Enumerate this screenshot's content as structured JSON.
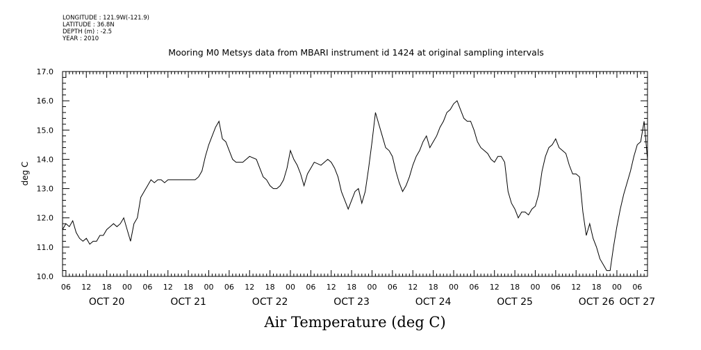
{
  "header": {
    "longitude": "LONGITUDE : 121.9W(-121.9)",
    "latitude": "LATITUDE : 36.8N",
    "depth": "DEPTH (m) : -2.5",
    "year": "YEAR : 2010"
  },
  "chart_data": {
    "type": "line",
    "title": "Mooring M0 Metsys data from MBARI instrument id 1424 at original sampling intervals",
    "xlabel": "Air Temperature (deg C)",
    "ylabel": "deg C",
    "ylim": [
      10.0,
      17.0
    ],
    "y_ticks": [
      "10.0",
      "11.0",
      "12.0",
      "13.0",
      "14.0",
      "15.0",
      "16.0",
      "17.0"
    ],
    "x_range_hours": [
      "Oct 19 2010 23:00",
      "Oct 27 2010 03:00"
    ],
    "hour_tick_labels": [
      "06",
      "12",
      "18",
      "00",
      "06",
      "12",
      "18",
      "00",
      "06",
      "12",
      "18",
      "00",
      "06",
      "12",
      "18",
      "00",
      "06",
      "12",
      "18",
      "00",
      "06",
      "12",
      "18",
      "00",
      "06",
      "12",
      "18",
      "00",
      "06",
      "12",
      "18",
      "00"
    ],
    "date_labels": [
      "OCT 20",
      "OCT 21",
      "OCT 22",
      "OCT 23",
      "OCT 24",
      "OCT 25",
      "OCT 26",
      "OCT 27"
    ],
    "grid": false,
    "series": [
      {
        "points": [
          [
            "Oct 19 23:00",
            11.6
          ],
          [
            "Oct 20 00:00",
            11.8
          ],
          [
            "Oct 20 01:00",
            11.7
          ],
          [
            "Oct 20 02:00",
            11.9
          ],
          [
            "Oct 20 03:00",
            11.5
          ],
          [
            "Oct 20 04:00",
            11.3
          ],
          [
            "Oct 20 05:00",
            11.2
          ],
          [
            "Oct 20 06:00",
            11.3
          ],
          [
            "Oct 20 07:00",
            11.1
          ],
          [
            "Oct 20 08:00",
            11.2
          ],
          [
            "Oct 20 09:00",
            11.2
          ],
          [
            "Oct 20 10:00",
            11.4
          ],
          [
            "Oct 20 11:00",
            11.4
          ],
          [
            "Oct 20 12:00",
            11.6
          ],
          [
            "Oct 20 13:00",
            11.7
          ],
          [
            "Oct 20 14:00",
            11.8
          ],
          [
            "Oct 20 15:00",
            11.7
          ],
          [
            "Oct 20 16:00",
            11.8
          ],
          [
            "Oct 20 17:00",
            12.0
          ],
          [
            "Oct 20 18:00",
            11.6
          ],
          [
            "Oct 20 19:00",
            11.2
          ],
          [
            "Oct 20 20:00",
            11.8
          ],
          [
            "Oct 20 21:00",
            12.0
          ],
          [
            "Oct 20 22:00",
            12.7
          ],
          [
            "Oct 20 23:00",
            12.9
          ],
          [
            "Oct 21 00:00",
            13.1
          ],
          [
            "Oct 21 01:00",
            13.3
          ],
          [
            "Oct 21 02:00",
            13.2
          ],
          [
            "Oct 21 03:00",
            13.3
          ],
          [
            "Oct 21 04:00",
            13.3
          ],
          [
            "Oct 21 05:00",
            13.2
          ],
          [
            "Oct 21 06:00",
            13.3
          ],
          [
            "Oct 21 08:00",
            13.3
          ],
          [
            "Oct 21 10:00",
            13.3
          ],
          [
            "Oct 21 12:00",
            13.3
          ],
          [
            "Oct 21 14:00",
            13.3
          ],
          [
            "Oct 21 15:00",
            13.4
          ],
          [
            "Oct 21 16:00",
            13.6
          ],
          [
            "Oct 21 17:00",
            14.1
          ],
          [
            "Oct 21 18:00",
            14.5
          ],
          [
            "Oct 21 19:00",
            14.8
          ],
          [
            "Oct 21 20:00",
            15.1
          ],
          [
            "Oct 21 21:00",
            15.3
          ],
          [
            "Oct 21 22:00",
            14.7
          ],
          [
            "Oct 21 23:00",
            14.6
          ],
          [
            "Oct 22 00:00",
            14.3
          ],
          [
            "Oct 22 01:00",
            14.0
          ],
          [
            "Oct 22 02:00",
            13.9
          ],
          [
            "Oct 22 04:00",
            13.9
          ],
          [
            "Oct 22 06:00",
            14.1
          ],
          [
            "Oct 22 08:00",
            14.0
          ],
          [
            "Oct 22 09:00",
            13.7
          ],
          [
            "Oct 22 10:00",
            13.4
          ],
          [
            "Oct 22 11:00",
            13.3
          ],
          [
            "Oct 22 12:00",
            13.1
          ],
          [
            "Oct 22 13:00",
            13.0
          ],
          [
            "Oct 22 14:00",
            13.0
          ],
          [
            "Oct 22 15:00",
            13.1
          ],
          [
            "Oct 22 16:00",
            13.3
          ],
          [
            "Oct 22 17:00",
            13.7
          ],
          [
            "Oct 22 18:00",
            14.3
          ],
          [
            "Oct 22 19:00",
            14.0
          ],
          [
            "Oct 22 20:00",
            13.8
          ],
          [
            "Oct 22 21:00",
            13.5
          ],
          [
            "Oct 22 22:00",
            13.1
          ],
          [
            "Oct 22 23:00",
            13.5
          ],
          [
            "Oct 23 00:00",
            13.7
          ],
          [
            "Oct 23 01:00",
            13.9
          ],
          [
            "Oct 23 03:00",
            13.8
          ],
          [
            "Oct 23 05:00",
            14.0
          ],
          [
            "Oct 23 06:00",
            13.9
          ],
          [
            "Oct 23 07:00",
            13.7
          ],
          [
            "Oct 23 08:00",
            13.4
          ],
          [
            "Oct 23 09:00",
            12.9
          ],
          [
            "Oct 23 10:00",
            12.6
          ],
          [
            "Oct 23 11:00",
            12.3
          ],
          [
            "Oct 23 12:00",
            12.6
          ],
          [
            "Oct 23 13:00",
            12.9
          ],
          [
            "Oct 23 14:00",
            13.0
          ],
          [
            "Oct 23 15:00",
            12.5
          ],
          [
            "Oct 23 16:00",
            12.9
          ],
          [
            "Oct 23 17:00",
            13.7
          ],
          [
            "Oct 23 18:00",
            14.6
          ],
          [
            "Oct 23 19:00",
            15.6
          ],
          [
            "Oct 23 20:00",
            15.2
          ],
          [
            "Oct 23 21:00",
            14.8
          ],
          [
            "Oct 23 22:00",
            14.4
          ],
          [
            "Oct 23 23:00",
            14.3
          ],
          [
            "Oct 24 00:00",
            14.1
          ],
          [
            "Oct 24 01:00",
            13.6
          ],
          [
            "Oct 24 02:00",
            13.2
          ],
          [
            "Oct 24 03:00",
            12.9
          ],
          [
            "Oct 24 04:00",
            13.1
          ],
          [
            "Oct 24 05:00",
            13.4
          ],
          [
            "Oct 24 06:00",
            13.8
          ],
          [
            "Oct 24 07:00",
            14.1
          ],
          [
            "Oct 24 08:00",
            14.3
          ],
          [
            "Oct 24 09:00",
            14.6
          ],
          [
            "Oct 24 10:00",
            14.8
          ],
          [
            "Oct 24 11:00",
            14.4
          ],
          [
            "Oct 24 12:00",
            14.6
          ],
          [
            "Oct 24 13:00",
            14.8
          ],
          [
            "Oct 24 14:00",
            15.1
          ],
          [
            "Oct 24 15:00",
            15.3
          ],
          [
            "Oct 24 16:00",
            15.6
          ],
          [
            "Oct 24 17:00",
            15.7
          ],
          [
            "Oct 24 18:00",
            15.9
          ],
          [
            "Oct 24 19:00",
            16.0
          ],
          [
            "Oct 24 20:00",
            15.7
          ],
          [
            "Oct 24 21:00",
            15.4
          ],
          [
            "Oct 24 22:00",
            15.3
          ],
          [
            "Oct 24 23:00",
            15.3
          ],
          [
            "Oct 25 00:00",
            15.0
          ],
          [
            "Oct 25 01:00",
            14.6
          ],
          [
            "Oct 25 02:00",
            14.4
          ],
          [
            "Oct 25 03:00",
            14.3
          ],
          [
            "Oct 25 04:00",
            14.2
          ],
          [
            "Oct 25 05:00",
            14.0
          ],
          [
            "Oct 25 06:00",
            13.9
          ],
          [
            "Oct 25 07:00",
            14.1
          ],
          [
            "Oct 25 08:00",
            14.1
          ],
          [
            "Oct 25 09:00",
            13.9
          ],
          [
            "Oct 25 10:00",
            12.9
          ],
          [
            "Oct 25 11:00",
            12.5
          ],
          [
            "Oct 25 12:00",
            12.3
          ],
          [
            "Oct 25 13:00",
            12.0
          ],
          [
            "Oct 25 14:00",
            12.2
          ],
          [
            "Oct 25 15:00",
            12.2
          ],
          [
            "Oct 25 16:00",
            12.1
          ],
          [
            "Oct 25 17:00",
            12.3
          ],
          [
            "Oct 25 18:00",
            12.4
          ],
          [
            "Oct 25 19:00",
            12.8
          ],
          [
            "Oct 25 20:00",
            13.6
          ],
          [
            "Oct 25 21:00",
            14.1
          ],
          [
            "Oct 25 22:00",
            14.4
          ],
          [
            "Oct 25 23:00",
            14.5
          ],
          [
            "Oct 26 00:00",
            14.7
          ],
          [
            "Oct 26 01:00",
            14.4
          ],
          [
            "Oct 26 02:00",
            14.3
          ],
          [
            "Oct 26 03:00",
            14.2
          ],
          [
            "Oct 26 04:00",
            13.8
          ],
          [
            "Oct 26 05:00",
            13.5
          ],
          [
            "Oct 26 06:00",
            13.5
          ],
          [
            "Oct 26 07:00",
            13.4
          ],
          [
            "Oct 26 08:00",
            12.2
          ],
          [
            "Oct 26 09:00",
            11.4
          ],
          [
            "Oct 26 10:00",
            11.8
          ],
          [
            "Oct 26 11:00",
            11.3
          ],
          [
            "Oct 26 12:00",
            11.0
          ],
          [
            "Oct 26 13:00",
            10.6
          ],
          [
            "Oct 26 14:00",
            10.4
          ],
          [
            "Oct 26 15:00",
            10.2
          ],
          [
            "Oct 26 16:00",
            10.2
          ],
          [
            "Oct 26 17:00",
            11.0
          ],
          [
            "Oct 26 18:00",
            11.7
          ],
          [
            "Oct 26 19:00",
            12.3
          ],
          [
            "Oct 26 20:00",
            12.8
          ],
          [
            "Oct 26 21:00",
            13.2
          ],
          [
            "Oct 26 22:00",
            13.6
          ],
          [
            "Oct 26 23:00",
            14.1
          ],
          [
            "Oct 27 00:00",
            14.5
          ],
          [
            "Oct 27 01:00",
            14.6
          ],
          [
            "Oct 27 02:00",
            15.3
          ],
          [
            "Oct 27 03:00",
            14.0
          ]
        ]
      }
    ]
  }
}
